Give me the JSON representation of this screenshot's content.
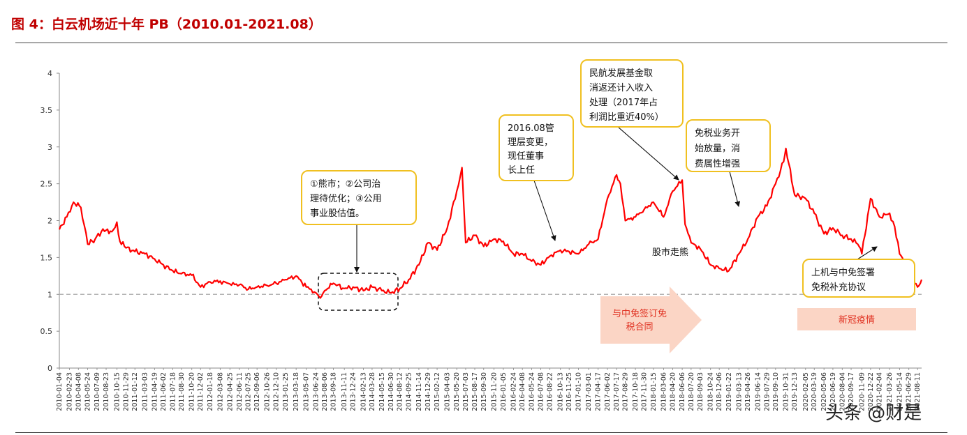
{
  "title": "图 4：白云机场近十年 PB（2010.01-2021.08）",
  "watermark": "头条 @财是",
  "colors": {
    "title": "#c00000",
    "line": "#ff0000",
    "reference_line": "#b3b3b3",
    "callout_border": "#f0c020",
    "arrow_banner": "#fbd5c5",
    "event_label": "#e03020",
    "axis": "#888888"
  },
  "chart_data": {
    "type": "line",
    "title": "",
    "xlabel": "",
    "ylabel": "",
    "ylim": [
      0,
      4
    ],
    "yticks": [
      0,
      0.5,
      1,
      1.5,
      2,
      2.5,
      3,
      3.5,
      4
    ],
    "ytick_labels": [
      "0",
      "0.5",
      "1",
      "1.5",
      "2",
      "2.5",
      "3",
      "3.5",
      "4"
    ],
    "xlim": [
      "2010-01-04",
      "2021-08-31"
    ],
    "x_tick_labels": [
      "2010-01-04",
      "2010-02-23",
      "2010-04-08",
      "2010-05-24",
      "2010-07-09",
      "2010-08-23",
      "2010-10-15",
      "2010-11-29",
      "2011-01-12",
      "2011-03-03",
      "2011-04-19",
      "2011-06-02",
      "2011-07-18",
      "2011-08-30",
      "2011-10-20",
      "2011-12-02",
      "2012-01-18",
      "2012-03-08",
      "2012-04-25",
      "2012-06-11",
      "2012-07-25",
      "2012-09-06",
      "2012-10-26",
      "2012-12-10",
      "2013-01-25",
      "2013-03-18",
      "2013-05-07",
      "2013-06-24",
      "2013-08-06",
      "2013-09-18",
      "2013-11-11",
      "2013-12-24",
      "2014-02-13",
      "2014-03-28",
      "2014-05-15",
      "2014-06-30",
      "2014-08-12",
      "2014-09-25",
      "2014-11-14",
      "2014-12-29",
      "2015-02-12",
      "2015-04-03",
      "2015-05-20",
      "2015-07-03",
      "2015-08-17",
      "2015-09-30",
      "2015-11-20",
      "2016-01-05",
      "2016-02-24",
      "2016-04-08",
      "2016-05-24",
      "2016-07-08",
      "2016-08-22",
      "2016-10-13",
      "2016-11-25",
      "2017-01-10",
      "2017-03-01",
      "2017-04-17",
      "2017-06-02",
      "2017-07-17",
      "2017-08-29",
      "2017-10-18",
      "2017-11-30",
      "2018-01-15",
      "2018-03-06",
      "2018-04-20",
      "2018-06-06",
      "2018-07-20",
      "2018-09-03",
      "2018-10-24",
      "2018-12-06",
      "2019-01-22",
      "2019-03-13",
      "2019-04-26",
      "2019-06-14",
      "2019-07-29",
      "2019-09-10",
      "2019-10-31",
      "2019-12-13",
      "2020-02-05",
      "2020-03-19",
      "2020-05-06",
      "2020-06-19",
      "2020-08-04",
      "2020-09-17",
      "2020-11-09",
      "2020-12-22",
      "2021-02-04",
      "2021-03-26",
      "2021-05-14",
      "2021-06-29",
      "2021-08-11"
    ],
    "reference_line": {
      "y": 1,
      "style": "dashed"
    },
    "series": [
      {
        "name": "",
        "x": [
          "2010-01-04",
          "2010-02-10",
          "2010-03-15",
          "2010-04-20",
          "2010-05-24",
          "2010-06-30",
          "2010-07-30",
          "2010-08-23",
          "2010-09-20",
          "2010-10-15",
          "2010-10-30",
          "2010-11-29",
          "2011-01-12",
          "2011-03-03",
          "2011-04-19",
          "2011-06-02",
          "2011-07-18",
          "2011-08-30",
          "2011-10-20",
          "2011-12-02",
          "2012-01-18",
          "2012-03-08",
          "2012-04-25",
          "2012-06-11",
          "2012-07-25",
          "2012-09-06",
          "2012-10-26",
          "2012-12-10",
          "2013-01-25",
          "2013-03-18",
          "2013-05-07",
          "2013-06-24",
          "2013-07-15",
          "2013-08-06",
          "2013-09-18",
          "2013-11-11",
          "2013-12-24",
          "2014-02-13",
          "2014-03-28",
          "2014-05-15",
          "2014-06-30",
          "2014-08-12",
          "2014-09-25",
          "2014-11-14",
          "2014-12-29",
          "2015-02-12",
          "2015-04-03",
          "2015-05-20",
          "2015-06-15",
          "2015-07-03",
          "2015-08-17",
          "2015-09-30",
          "2015-11-20",
          "2016-01-05",
          "2016-02-24",
          "2016-04-08",
          "2016-05-24",
          "2016-07-08",
          "2016-08-22",
          "2016-10-13",
          "2016-11-25",
          "2017-01-10",
          "2017-03-01",
          "2017-04-17",
          "2017-06-02",
          "2017-07-17",
          "2017-08-05",
          "2017-08-29",
          "2017-10-18",
          "2017-11-30",
          "2018-01-15",
          "2018-03-06",
          "2018-04-20",
          "2018-06-06",
          "2018-06-20",
          "2018-07-20",
          "2018-09-03",
          "2018-10-24",
          "2018-12-06",
          "2019-01-22",
          "2019-03-13",
          "2019-04-26",
          "2019-06-14",
          "2019-07-29",
          "2019-09-10",
          "2019-10-20",
          "2019-10-31",
          "2019-12-13",
          "2020-02-05",
          "2020-03-19",
          "2020-05-06",
          "2020-06-19",
          "2020-08-04",
          "2020-09-17",
          "2020-10-20",
          "2020-11-09",
          "2020-12-22",
          "2021-02-04",
          "2021-03-26",
          "2021-04-20",
          "2021-05-14",
          "2021-06-29",
          "2021-07-27",
          "2021-08-11",
          "2021-08-31"
        ],
        "y": [
          1.88,
          2.05,
          2.25,
          2.18,
          1.68,
          1.75,
          1.85,
          1.87,
          1.85,
          1.98,
          1.72,
          1.63,
          1.58,
          1.55,
          1.48,
          1.4,
          1.32,
          1.28,
          1.26,
          1.1,
          1.17,
          1.18,
          1.14,
          1.13,
          1.07,
          1.1,
          1.12,
          1.15,
          1.2,
          1.25,
          1.1,
          1.02,
          0.95,
          1.05,
          1.15,
          1.08,
          1.1,
          1.05,
          1.1,
          1.05,
          1.02,
          1.08,
          1.2,
          1.4,
          1.7,
          1.6,
          1.9,
          2.4,
          2.72,
          1.7,
          1.8,
          1.65,
          1.75,
          1.72,
          1.55,
          1.55,
          1.45,
          1.4,
          1.52,
          1.6,
          1.58,
          1.55,
          1.68,
          1.75,
          2.3,
          2.62,
          2.5,
          2.0,
          2.05,
          2.15,
          2.25,
          2.05,
          2.4,
          2.55,
          1.95,
          1.7,
          1.62,
          1.4,
          1.35,
          1.32,
          1.55,
          1.75,
          2.05,
          2.2,
          2.5,
          2.8,
          2.98,
          2.35,
          2.3,
          2.1,
          1.82,
          1.9,
          1.8,
          1.75,
          1.68,
          1.55,
          2.3,
          2.05,
          2.1,
          1.92,
          1.55,
          1.3,
          1.15,
          1.1,
          1.2
        ]
      }
    ],
    "annotations": [
      {
        "id": "a1",
        "lines": [
          "①熊市；②公司治",
          "理待优化；③公用",
          "事业股估值。"
        ],
        "target": "2014-03-28"
      },
      {
        "id": "a2",
        "lines": [
          "2016.08管",
          "理层变更，",
          "现任董事",
          "长上任"
        ],
        "target": "2016-08-22"
      },
      {
        "id": "a3",
        "lines": [
          "民航发展基金取",
          "消返还计入收入",
          "处理（2017年占",
          "利润比重近40%）"
        ],
        "target": "2018-06-06"
      },
      {
        "id": "a4",
        "lines": [
          "免税业务开",
          "始放量，消",
          "费属性增强"
        ],
        "target": "2019-04-26"
      },
      {
        "id": "a5",
        "lines": [
          "上机与中免签署",
          "免税补充协议"
        ],
        "target": "2021-02-04"
      }
    ],
    "text_labels": [
      {
        "id": "t1",
        "text": "股市走熊"
      }
    ],
    "event_banners": [
      {
        "id": "e1",
        "text_lines": [
          "与中免签订免",
          "税合同"
        ],
        "shape": "arrow"
      },
      {
        "id": "e2",
        "text_lines": [
          "新冠疫情"
        ],
        "shape": "box"
      }
    ]
  }
}
